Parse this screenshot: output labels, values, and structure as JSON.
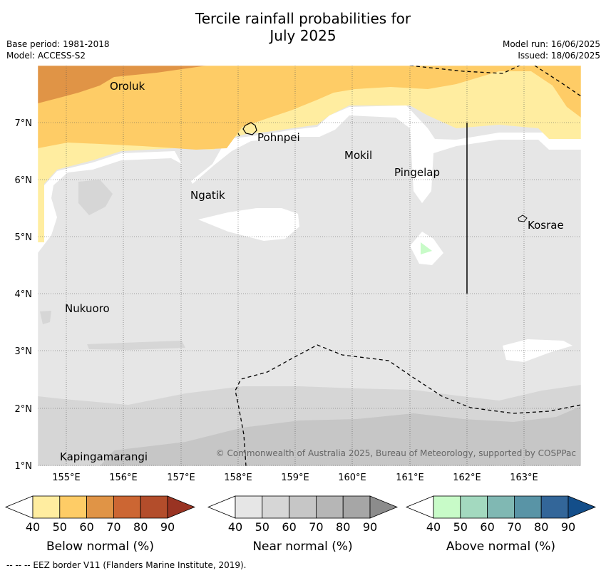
{
  "title_line1": "Tercile rainfall probabilities for",
  "title_line2": "July 2025",
  "base_period": "Base period: 1981-2018",
  "model": "Model: ACCESS-S2",
  "model_run": "Model run: 16/06/2025",
  "issued": "Issued: 18/06/2025",
  "copyright": "© Commonwealth of Australia 2025, Bureau of Meteorology, supported by COSPPac",
  "footnote": "--  --  -- EEZ border V11 (Flanders Marine Institute, 2019).",
  "lat_labels": [
    "7°N",
    "6°N",
    "5°N",
    "4°N",
    "3°N",
    "2°N",
    "1°N"
  ],
  "lon_labels": [
    "155°E",
    "156°E",
    "157°E",
    "158°E",
    "159°E",
    "160°E",
    "161°E",
    "162°E",
    "163°E"
  ],
  "places": [
    "Oroluk",
    "Pohnpei",
    "Mokil",
    "Pingelap",
    "Ngatik",
    "Kosrae",
    "Nukuoro",
    "Kapingamarangi"
  ],
  "legends": [
    {
      "label": "Below normal (%)",
      "colors": [
        "#ffffff",
        "#ffeda0",
        "#fecc66",
        "#e09446",
        "#cc6633",
        "#b34d2b",
        "#993322"
      ]
    },
    {
      "label": "Near normal (%)",
      "colors": [
        "#ffffff",
        "#e6e6e6",
        "#d6d6d6",
        "#c6c6c6",
        "#b6b6b6",
        "#a6a6a6",
        "#8c8c8c"
      ]
    },
    {
      "label": "Above normal (%)",
      "colors": [
        "#ffffff",
        "#c8fbc8",
        "#a3d9bf",
        "#80b8b3",
        "#5994a6",
        "#336699",
        "#134e8a"
      ]
    }
  ],
  "legend_ticks": [
    "40",
    "50",
    "60",
    "70",
    "80",
    "90"
  ]
}
